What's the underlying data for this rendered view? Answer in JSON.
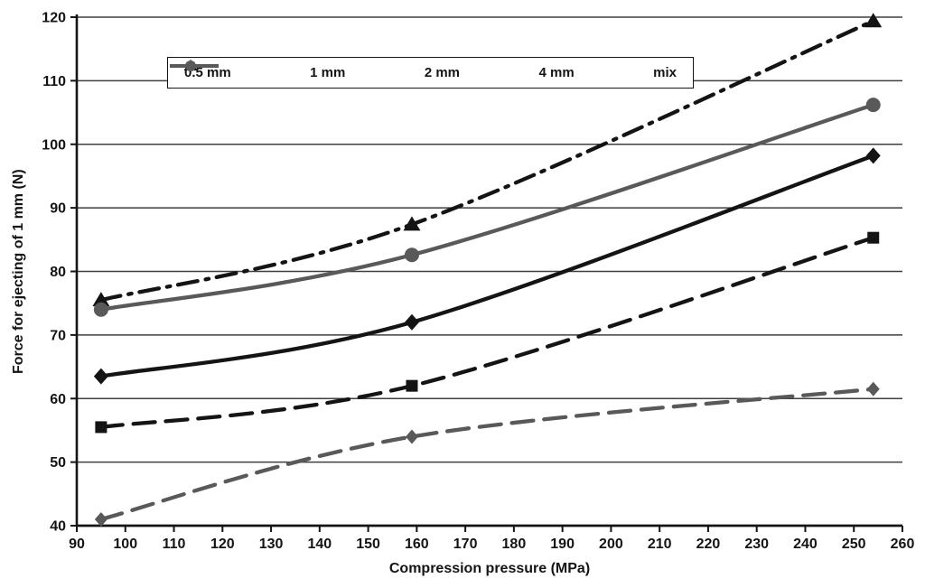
{
  "chart_data": {
    "type": "line",
    "title": "",
    "xlabel": "Compression pressure (MPa)",
    "ylabel": "Force for ejecting of 1 mm (N)",
    "xlim": [
      90,
      260
    ],
    "ylim": [
      40,
      120
    ],
    "x_ticks": [
      90,
      100,
      110,
      120,
      130,
      140,
      150,
      160,
      170,
      180,
      190,
      200,
      210,
      220,
      230,
      240,
      250,
      260
    ],
    "y_ticks": [
      40,
      50,
      60,
      70,
      80,
      90,
      100,
      110,
      120
    ],
    "grid": "horizontal",
    "legend_position": "top-center",
    "x": [
      95,
      159,
      254
    ],
    "series": [
      {
        "name": "0.5 mm",
        "values": [
          41,
          54,
          61.5
        ],
        "color": "#595959",
        "line": "dashed",
        "marker": "diamond",
        "marker_size": 7
      },
      {
        "name": "1 mm",
        "values": [
          55.5,
          62,
          85.3
        ],
        "color": "#141414",
        "line": "dashed",
        "marker": "square",
        "marker_size": 7
      },
      {
        "name": "2 mm",
        "values": [
          63.5,
          72,
          98.2
        ],
        "color": "#141414",
        "line": "solid",
        "marker": "diamond",
        "marker_size": 8
      },
      {
        "name": "4 mm",
        "values": [
          75.5,
          87.4,
          119.4
        ],
        "color": "#141414",
        "line": "dashdot",
        "marker": "triangle",
        "marker_size": 9
      },
      {
        "name": "mix",
        "values": [
          74,
          82.6,
          106.2
        ],
        "color": "#595959",
        "line": "solid",
        "marker": "circle",
        "marker_size": 8
      }
    ],
    "colors": {
      "black": "#141414",
      "gray": "#595959",
      "grid": "#3f3f3f",
      "background": "#ffffff"
    }
  }
}
